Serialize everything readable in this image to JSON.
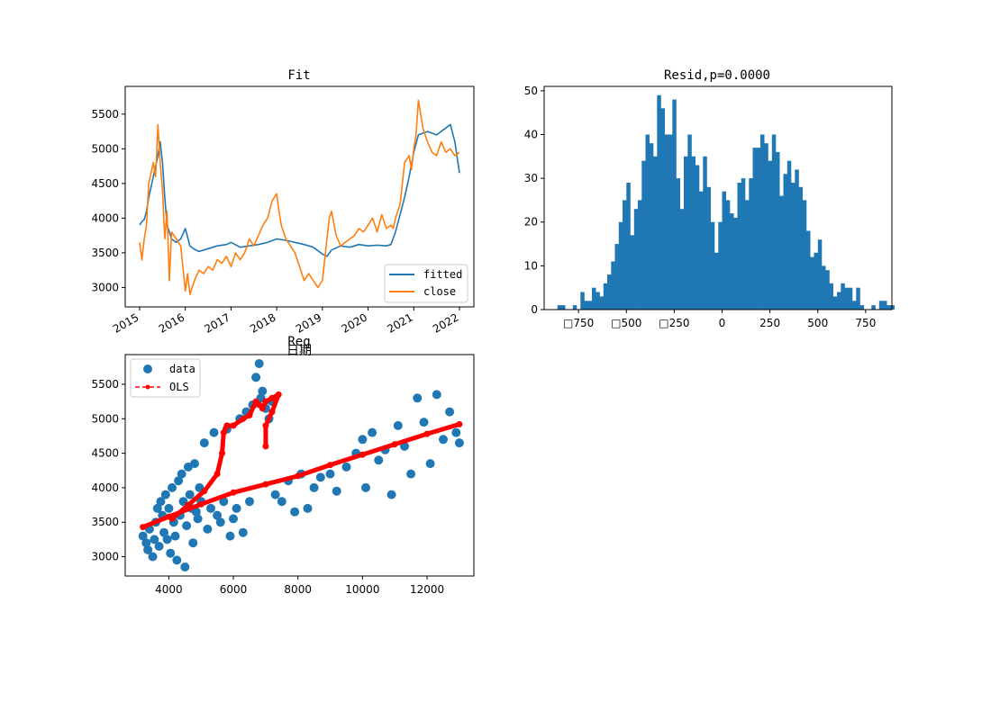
{
  "colors": {
    "blue": "#1f77b4",
    "orange": "#ff7f0e",
    "red": "#ff0000"
  },
  "chart_data": [
    {
      "type": "line",
      "title": "Fit",
      "xlim": [
        2015.0,
        2022.0
      ],
      "ylim": [
        2720,
        5900
      ],
      "x_ticks": [
        2015,
        2016,
        2017,
        2018,
        2019,
        2020,
        2021,
        2022
      ],
      "x_tick_labels": [
        "2015",
        "2016",
        "2017",
        "2018",
        "2019",
        "2020",
        "2021",
        "2022"
      ],
      "y_ticks": [
        3000,
        3500,
        4000,
        4500,
        5000,
        5500
      ],
      "y_tick_labels": [
        "3000",
        "3500",
        "4000",
        "4500",
        "5000",
        "5500"
      ],
      "legend": {
        "loc": "lower-right"
      },
      "series": [
        {
          "name": "fitted",
          "color": "#1f77b4",
          "x": [
            2015.0,
            2015.05,
            2015.1,
            2015.15,
            2015.2,
            2015.3,
            2015.4,
            2015.45,
            2015.5,
            2015.55,
            2015.6,
            2015.7,
            2015.8,
            2015.9,
            2016.0,
            2016.1,
            2016.2,
            2016.3,
            2016.5,
            2016.7,
            2016.9,
            2017.0,
            2017.2,
            2017.4,
            2017.6,
            2017.8,
            2018.0,
            2018.2,
            2018.4,
            2018.6,
            2018.8,
            2019.0,
            2019.1,
            2019.2,
            2019.4,
            2019.6,
            2019.8,
            2020.0,
            2020.2,
            2020.4,
            2020.5,
            2020.6,
            2020.8,
            2020.9,
            2021.0,
            2021.1,
            2021.3,
            2021.5,
            2021.7,
            2021.8,
            2021.9,
            2022.0
          ],
          "y": [
            3900,
            3950,
            3980,
            4100,
            4300,
            4600,
            4900,
            5100,
            4800,
            4300,
            3900,
            3700,
            3650,
            3700,
            3850,
            3600,
            3550,
            3520,
            3560,
            3600,
            3620,
            3650,
            3580,
            3600,
            3620,
            3650,
            3700,
            3680,
            3650,
            3620,
            3580,
            3480,
            3450,
            3540,
            3600,
            3580,
            3620,
            3600,
            3610,
            3600,
            3620,
            3800,
            4300,
            4600,
            4950,
            5200,
            5250,
            5200,
            5300,
            5350,
            5100,
            4650
          ]
        },
        {
          "name": "close",
          "color": "#ff7f0e",
          "x": [
            2015.0,
            2015.05,
            2015.1,
            2015.15,
            2015.2,
            2015.3,
            2015.35,
            2015.4,
            2015.45,
            2015.5,
            2015.55,
            2015.6,
            2015.65,
            2015.7,
            2015.8,
            2015.9,
            2016.0,
            2016.05,
            2016.1,
            2016.2,
            2016.3,
            2016.4,
            2016.5,
            2016.6,
            2016.7,
            2016.8,
            2016.9,
            2017.0,
            2017.1,
            2017.2,
            2017.3,
            2017.4,
            2017.5,
            2017.6,
            2017.7,
            2017.8,
            2017.9,
            2018.0,
            2018.05,
            2018.1,
            2018.2,
            2018.3,
            2018.4,
            2018.5,
            2018.6,
            2018.7,
            2018.8,
            2018.9,
            2019.0,
            2019.1,
            2019.15,
            2019.2,
            2019.3,
            2019.4,
            2019.5,
            2019.6,
            2019.7,
            2019.8,
            2019.9,
            2020.0,
            2020.1,
            2020.2,
            2020.3,
            2020.4,
            2020.5,
            2020.55,
            2020.6,
            2020.7,
            2020.8,
            2020.9,
            2020.95,
            2021.0,
            2021.05,
            2021.1,
            2021.15,
            2021.2,
            2021.3,
            2021.4,
            2021.5,
            2021.6,
            2021.7,
            2021.8,
            2021.9,
            2022.0
          ],
          "y": [
            3650,
            3400,
            3700,
            3900,
            4500,
            4800,
            4600,
            5350,
            4800,
            4400,
            3700,
            4100,
            3100,
            3800,
            3700,
            3600,
            2950,
            3200,
            2900,
            3100,
            3250,
            3200,
            3300,
            3250,
            3400,
            3350,
            3450,
            3300,
            3500,
            3400,
            3500,
            3700,
            3600,
            3750,
            3900,
            4000,
            4250,
            4350,
            4100,
            3900,
            3700,
            3600,
            3500,
            3300,
            3100,
            3200,
            3100,
            3000,
            3100,
            3700,
            4000,
            4100,
            3750,
            3600,
            3650,
            3700,
            3750,
            3850,
            3800,
            3900,
            4000,
            3800,
            4050,
            3850,
            3900,
            3850,
            4000,
            4200,
            4800,
            4900,
            4700,
            5000,
            5200,
            5700,
            5500,
            5300,
            5100,
            4950,
            4900,
            5100,
            4950,
            5000,
            4900,
            4950
          ]
        }
      ]
    },
    {
      "type": "bar",
      "title": "Resid,p=0.0000",
      "xlim": [
        -1000,
        1000
      ],
      "ylim": [
        0,
        51
      ],
      "x_ticks": [
        -750,
        -500,
        -250,
        0,
        250,
        500,
        750
      ],
      "x_tick_labels": [
        "□750",
        "□500",
        "□250",
        "0",
        "250",
        "500",
        "750"
      ],
      "y_ticks": [
        0,
        10,
        20,
        30,
        40,
        50
      ],
      "y_tick_labels": [
        "0",
        "10",
        "20",
        "30",
        "40",
        "50"
      ],
      "bin_width": 20,
      "bins": [
        [
          -850,
          1
        ],
        [
          -830,
          1
        ],
        [
          -770,
          1
        ],
        [
          -730,
          4
        ],
        [
          -710,
          2
        ],
        [
          -690,
          2
        ],
        [
          -670,
          5
        ],
        [
          -650,
          4
        ],
        [
          -630,
          3
        ],
        [
          -610,
          6
        ],
        [
          -590,
          8
        ],
        [
          -570,
          11
        ],
        [
          -550,
          15
        ],
        [
          -530,
          20
        ],
        [
          -510,
          25
        ],
        [
          -490,
          29
        ],
        [
          -470,
          17
        ],
        [
          -450,
          23
        ],
        [
          -430,
          25
        ],
        [
          -410,
          34
        ],
        [
          -390,
          40
        ],
        [
          -370,
          38
        ],
        [
          -350,
          35
        ],
        [
          -330,
          49
        ],
        [
          -310,
          46
        ],
        [
          -290,
          40
        ],
        [
          -270,
          40
        ],
        [
          -250,
          48
        ],
        [
          -230,
          30
        ],
        [
          -210,
          23
        ],
        [
          -190,
          35
        ],
        [
          -170,
          40
        ],
        [
          -150,
          35
        ],
        [
          -130,
          33
        ],
        [
          -110,
          27
        ],
        [
          -90,
          35
        ],
        [
          -70,
          28
        ],
        [
          -50,
          20
        ],
        [
          -30,
          13
        ],
        [
          -10,
          20
        ],
        [
          10,
          27
        ],
        [
          30,
          25
        ],
        [
          50,
          22
        ],
        [
          70,
          21
        ],
        [
          90,
          29
        ],
        [
          110,
          30
        ],
        [
          130,
          25
        ],
        [
          150,
          30
        ],
        [
          170,
          37
        ],
        [
          190,
          37
        ],
        [
          210,
          40
        ],
        [
          230,
          38
        ],
        [
          250,
          34
        ],
        [
          270,
          40
        ],
        [
          290,
          36
        ],
        [
          310,
          26
        ],
        [
          330,
          31
        ],
        [
          350,
          34
        ],
        [
          370,
          29
        ],
        [
          390,
          32
        ],
        [
          410,
          28
        ],
        [
          430,
          25
        ],
        [
          450,
          18
        ],
        [
          470,
          12
        ],
        [
          490,
          13
        ],
        [
          510,
          16
        ],
        [
          530,
          10
        ],
        [
          550,
          9
        ],
        [
          570,
          6
        ],
        [
          590,
          3
        ],
        [
          610,
          4
        ],
        [
          630,
          6
        ],
        [
          650,
          5
        ],
        [
          670,
          5
        ],
        [
          690,
          2
        ],
        [
          710,
          5
        ],
        [
          730,
          1
        ],
        [
          790,
          1
        ],
        [
          830,
          2
        ],
        [
          850,
          2
        ],
        [
          870,
          1
        ],
        [
          890,
          1
        ]
      ]
    },
    {
      "type": "scatter",
      "title": "Reg",
      "subtitle": "日期",
      "xlim": [
        2650,
        13450
      ],
      "ylim": [
        2720,
        5930
      ],
      "x_ticks": [
        4000,
        6000,
        8000,
        10000,
        12000
      ],
      "x_tick_labels": [
        "4000",
        "6000",
        "8000",
        "10000",
        "12000"
      ],
      "y_ticks": [
        3000,
        3500,
        4000,
        4500,
        5000,
        5500
      ],
      "y_tick_labels": [
        "3000",
        "3500",
        "4000",
        "4500",
        "5000",
        "5500"
      ],
      "legend": {
        "loc": "upper-left"
      },
      "series": [
        {
          "name": "data",
          "color": "#1f77b4",
          "points": [
            [
              3200,
              3300
            ],
            [
              3300,
              3200
            ],
            [
              3350,
              3100
            ],
            [
              3400,
              3400
            ],
            [
              3500,
              3000
            ],
            [
              3550,
              3250
            ],
            [
              3600,
              3500
            ],
            [
              3650,
              3700
            ],
            [
              3700,
              3150
            ],
            [
              3750,
              3800
            ],
            [
              3800,
              3600
            ],
            [
              3850,
              3350
            ],
            [
              3900,
              3900
            ],
            [
              3950,
              3250
            ],
            [
              4000,
              3700
            ],
            [
              4050,
              3050
            ],
            [
              4100,
              4000
            ],
            [
              4150,
              3500
            ],
            [
              4200,
              3300
            ],
            [
              4250,
              2950
            ],
            [
              4300,
              4100
            ],
            [
              4350,
              3600
            ],
            [
              4400,
              4200
            ],
            [
              4450,
              3800
            ],
            [
              4500,
              2850
            ],
            [
              4550,
              3450
            ],
            [
              4600,
              4300
            ],
            [
              4650,
              3900
            ],
            [
              4700,
              3700
            ],
            [
              4750,
              3200
            ],
            [
              4800,
              4350
            ],
            [
              4850,
              3650
            ],
            [
              4900,
              3550
            ],
            [
              4950,
              4000
            ],
            [
              5000,
              3800
            ],
            [
              5100,
              4650
            ],
            [
              5200,
              3400
            ],
            [
              5300,
              3700
            ],
            [
              5400,
              4800
            ],
            [
              5500,
              3600
            ],
            [
              5600,
              3500
            ],
            [
              5700,
              3800
            ],
            [
              5800,
              4850
            ],
            [
              5900,
              3300
            ],
            [
              6000,
              3550
            ],
            [
              6100,
              3700
            ],
            [
              6200,
              5000
            ],
            [
              6300,
              3350
            ],
            [
              6400,
              5100
            ],
            [
              6500,
              3800
            ],
            [
              6600,
              5200
            ],
            [
              6700,
              5600
            ],
            [
              6800,
              5800
            ],
            [
              6850,
              5300
            ],
            [
              6900,
              5400
            ],
            [
              7000,
              5150
            ],
            [
              7100,
              5000
            ],
            [
              7200,
              5250
            ],
            [
              7300,
              3900
            ],
            [
              7500,
              3800
            ],
            [
              7700,
              4100
            ],
            [
              7900,
              3650
            ],
            [
              8100,
              4200
            ],
            [
              8300,
              3700
            ],
            [
              8500,
              4000
            ],
            [
              8700,
              4150
            ],
            [
              9000,
              4200
            ],
            [
              9200,
              3950
            ],
            [
              9500,
              4300
            ],
            [
              9800,
              4500
            ],
            [
              10000,
              4700
            ],
            [
              10100,
              4000
            ],
            [
              10300,
              4800
            ],
            [
              10500,
              4400
            ],
            [
              10700,
              4550
            ],
            [
              10900,
              3900
            ],
            [
              11100,
              4900
            ],
            [
              11300,
              4600
            ],
            [
              11500,
              4200
            ],
            [
              11700,
              5300
            ],
            [
              11900,
              4950
            ],
            [
              12100,
              4350
            ],
            [
              12300,
              5350
            ],
            [
              12500,
              4700
            ],
            [
              12700,
              5100
            ],
            [
              12900,
              4800
            ],
            [
              13000,
              4650
            ]
          ]
        },
        {
          "name": "OLS",
          "color": "#ff0000",
          "x": [
            3200,
            4000,
            5000,
            6000,
            7000,
            8000,
            9000,
            10000,
            11000,
            12000,
            13000
          ],
          "y": [
            3430,
            3580,
            3760,
            3930,
            4050,
            4170,
            4330,
            4480,
            4630,
            4780,
            4920
          ],
          "curve": [
            [
              4100,
              3550
            ],
            [
              4600,
              3750
            ],
            [
              5100,
              3950
            ],
            [
              5500,
              4200
            ],
            [
              5650,
              4500
            ],
            [
              5700,
              4800
            ],
            [
              5800,
              4900
            ],
            [
              6000,
              4900
            ],
            [
              6300,
              5000
            ],
            [
              6500,
              5050
            ],
            [
              6700,
              5250
            ],
            [
              6800,
              5200
            ],
            [
              6900,
              5150
            ],
            [
              7000,
              5250
            ],
            [
              7200,
              5300
            ],
            [
              7400,
              5350
            ],
            [
              7200,
              5100
            ],
            [
              7000,
              4900
            ],
            [
              7000,
              4600
            ]
          ]
        }
      ]
    }
  ]
}
